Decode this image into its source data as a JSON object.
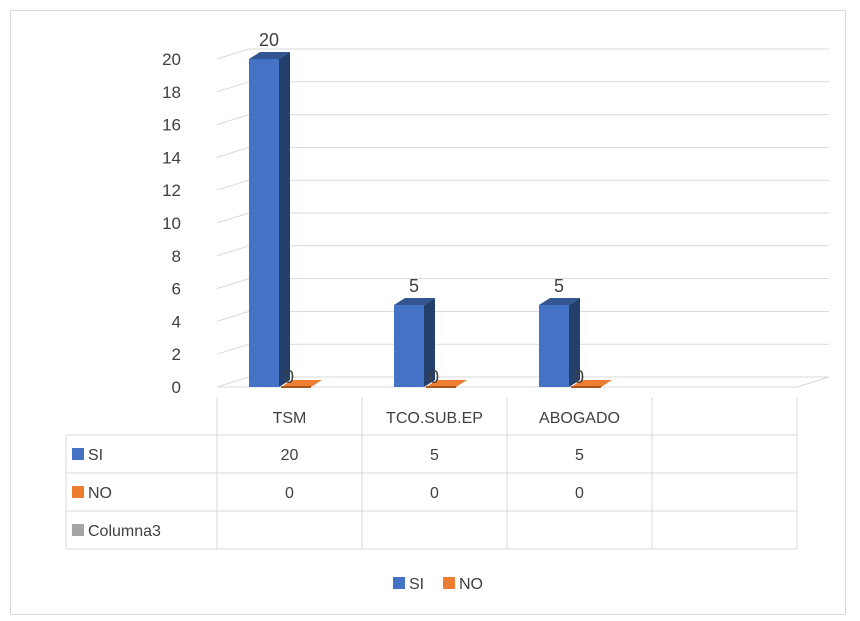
{
  "chart_data": {
    "type": "bar",
    "style": "3d-clustered-column-with-data-table",
    "categories": [
      "TSM",
      "TCO.SUB.EP",
      "ABOGADO",
      ""
    ],
    "series": [
      {
        "name": "SI",
        "values": [
          20,
          5,
          5,
          null
        ],
        "color": "#4472C4"
      },
      {
        "name": "NO",
        "values": [
          0,
          0,
          0,
          null
        ],
        "color": "#ED7D31"
      },
      {
        "name": "Columna3",
        "values": [
          null,
          null,
          null,
          null
        ],
        "color": "#A5A5A5"
      }
    ],
    "data_labels": {
      "SI": [
        "20",
        "5",
        "5"
      ],
      "NO": [
        "0",
        "0",
        "0"
      ]
    },
    "y_ticks": [
      "0",
      "2",
      "4",
      "6",
      "8",
      "10",
      "12",
      "14",
      "16",
      "18",
      "20"
    ],
    "ylim": [
      0,
      20
    ],
    "grid": true,
    "legend": {
      "placement": "bottom",
      "entries": [
        "SI",
        "NO"
      ]
    },
    "data_table": {
      "headers": [
        "TSM",
        "TCO.SUB.EP",
        "ABOGADO",
        ""
      ],
      "rows": [
        {
          "label": "SI",
          "cells": [
            "20",
            "5",
            "5",
            ""
          ]
        },
        {
          "label": "NO",
          "cells": [
            "0",
            "0",
            "0",
            ""
          ]
        },
        {
          "label": "Columna3",
          "cells": [
            "",
            "",
            "",
            ""
          ]
        }
      ]
    },
    "title": "",
    "xlabel": "",
    "ylabel": ""
  }
}
